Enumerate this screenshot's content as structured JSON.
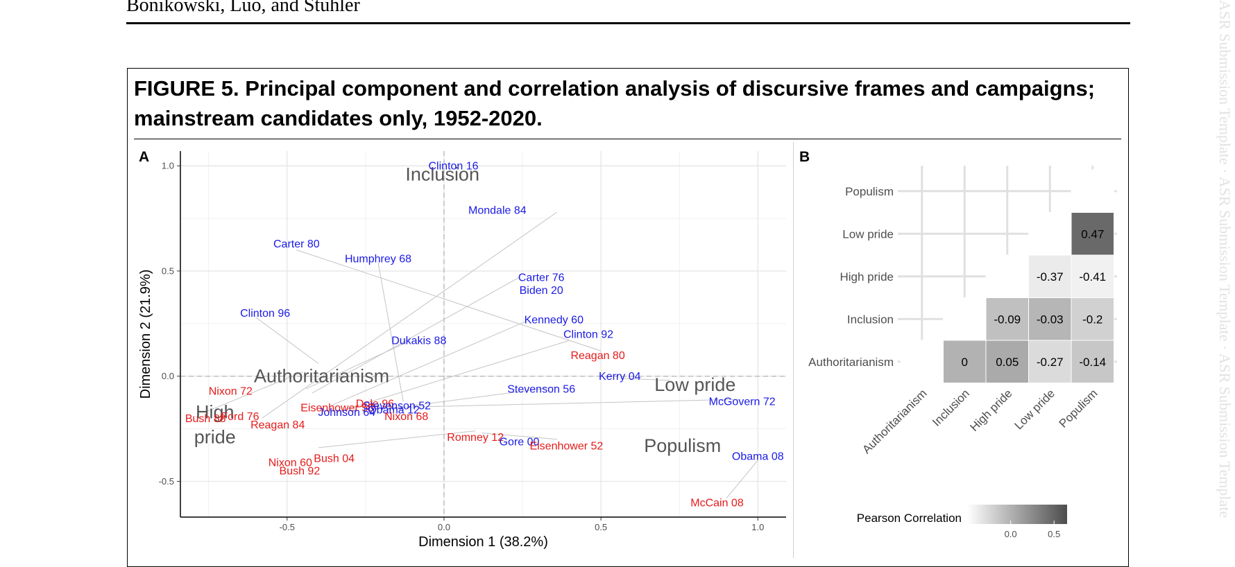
{
  "header": {
    "authors": "Bonikowski, Luo, and Stuhler"
  },
  "watermark": {
    "text": "ASR Submission Template · ASR Submission Template · ASR Submission Template"
  },
  "figure": {
    "caption_line1": "FIGURE 5. Principal component and correlation analysis of discursive frames and campaigns;",
    "caption_line2": "mainstream candidates only, 1952-2020."
  },
  "colors": {
    "democrat": "#1a1ae6",
    "republican": "#e61a1a",
    "frame": "#555555"
  },
  "chart_data": [
    {
      "type": "scatter",
      "panel_label": "A",
      "title": "",
      "xlabel": "Dimension 1 (38.2%)",
      "ylabel": "Dimension 2 (21.9%)",
      "xlim": [
        -0.84,
        1.09
      ],
      "ylim": [
        -0.67,
        1.07
      ],
      "xticks": [
        -0.5,
        0.0,
        0.5,
        1.0
      ],
      "xtick_labels": [
        "-0.5",
        "0.0",
        "0.5",
        "1.0"
      ],
      "yticks": [
        -0.5,
        0.0,
        0.5,
        1.0
      ],
      "ytick_labels": [
        "-0.5",
        "0.0",
        "0.5",
        "1.0"
      ],
      "grid": true,
      "frames": [
        {
          "label": "Inclusion",
          "x": -0.005,
          "y": 0.96
        },
        {
          "label": "Authoritarianism",
          "x": -0.39,
          "y": 0.0
        },
        {
          "label": "High",
          "x": -0.73,
          "y": -0.17
        },
        {
          "label": "pride",
          "x": -0.73,
          "y": -0.29
        },
        {
          "label": "Low pride",
          "x": 0.8,
          "y": -0.04
        },
        {
          "label": "Populism",
          "x": 0.76,
          "y": -0.33
        }
      ],
      "campaigns": [
        {
          "label": "Clinton 16",
          "x": 0.03,
          "y": 1.0,
          "party": "D"
        },
        {
          "label": "Mondale 84",
          "x": 0.17,
          "y": 0.79,
          "party": "D"
        },
        {
          "label": "Carter 80",
          "x": -0.47,
          "y": 0.63,
          "party": "D"
        },
        {
          "label": "Humphrey 68",
          "x": -0.21,
          "y": 0.56,
          "party": "D"
        },
        {
          "label": "Carter 76",
          "x": 0.31,
          "y": 0.47,
          "party": "D"
        },
        {
          "label": "Biden 20",
          "x": 0.31,
          "y": 0.41,
          "party": "D"
        },
        {
          "label": "Clinton 96",
          "x": -0.57,
          "y": 0.3,
          "party": "D"
        },
        {
          "label": "Kennedy 60",
          "x": 0.35,
          "y": 0.27,
          "party": "D"
        },
        {
          "label": "Clinton 92",
          "x": 0.46,
          "y": 0.2,
          "party": "D"
        },
        {
          "label": "Dukakis 88",
          "x": -0.08,
          "y": 0.17,
          "party": "D"
        },
        {
          "label": "Reagan 80",
          "x": 0.49,
          "y": 0.1,
          "party": "R"
        },
        {
          "label": "Kerry 04",
          "x": 0.56,
          "y": 0.0,
          "party": "D"
        },
        {
          "label": "Nixon 72",
          "x": -0.68,
          "y": -0.07,
          "party": "R"
        },
        {
          "label": "Stevenson 56",
          "x": 0.31,
          "y": -0.06,
          "party": "D"
        },
        {
          "label": "McGovern 72",
          "x": 0.95,
          "y": -0.12,
          "party": "D"
        },
        {
          "label": "Dole 96",
          "x": -0.22,
          "y": -0.13,
          "party": "R"
        },
        {
          "label": "Stevenson 52",
          "x": -0.15,
          "y": -0.14,
          "party": "D"
        },
        {
          "label": "Eisenhower 56",
          "x": -0.34,
          "y": -0.15,
          "party": "R"
        },
        {
          "label": "Obama 12",
          "x": -0.16,
          "y": -0.16,
          "party": "D"
        },
        {
          "label": "Johnson 64",
          "x": -0.31,
          "y": -0.17,
          "party": "D"
        },
        {
          "label": "Ford 76",
          "x": -0.65,
          "y": -0.19,
          "party": "R"
        },
        {
          "label": "Bush 88",
          "x": -0.76,
          "y": -0.2,
          "party": "R"
        },
        {
          "label": "Nixon 68",
          "x": -0.12,
          "y": -0.19,
          "party": "R"
        },
        {
          "label": "Reagan 84",
          "x": -0.53,
          "y": -0.23,
          "party": "R"
        },
        {
          "label": "Romney 12",
          "x": 0.1,
          "y": -0.29,
          "party": "R"
        },
        {
          "label": "Gore 00",
          "x": 0.24,
          "y": -0.31,
          "party": "D"
        },
        {
          "label": "Eisenhower 52",
          "x": 0.39,
          "y": -0.33,
          "party": "R"
        },
        {
          "label": "Obama 08",
          "x": 1.0,
          "y": -0.38,
          "party": "D"
        },
        {
          "label": "Bush 04",
          "x": -0.35,
          "y": -0.39,
          "party": "R"
        },
        {
          "label": "Nixon 60",
          "x": -0.49,
          "y": -0.41,
          "party": "R"
        },
        {
          "label": "Bush 92",
          "x": -0.46,
          "y": -0.45,
          "party": "R"
        },
        {
          "label": "McCain 08",
          "x": 0.87,
          "y": -0.6,
          "party": "R"
        }
      ],
      "connectors": [
        [
          -0.47,
          0.6,
          0.5,
          0.12
        ],
        [
          -0.21,
          0.54,
          -0.13,
          -0.12
        ],
        [
          -0.6,
          0.28,
          -0.4,
          0.06
        ],
        [
          -0.42,
          -0.08,
          0.24,
          0.47
        ],
        [
          -0.44,
          -0.06,
          -0.12,
          0.16
        ],
        [
          -0.36,
          -0.14,
          0.26,
          0.26
        ],
        [
          -0.34,
          -0.17,
          0.4,
          0.17
        ],
        [
          -0.2,
          -0.15,
          0.94,
          -0.11
        ],
        [
          -0.1,
          -0.14,
          0.36,
          -0.05
        ],
        [
          -0.4,
          -0.34,
          0.1,
          -0.26
        ],
        [
          -0.58,
          -0.2,
          0.36,
          0.78
        ],
        [
          -0.76,
          -0.17,
          -0.45,
          0.02
        ],
        [
          0.9,
          -0.58,
          1.0,
          -0.4
        ],
        [
          0.56,
          -0.01,
          0.72,
          -0.02
        ],
        [
          0.12,
          -0.27,
          0.36,
          -0.3
        ]
      ]
    },
    {
      "type": "heatmap",
      "panel_label": "B",
      "title": "",
      "variables": [
        "Authoritarianism",
        "Inclusion",
        "High pride",
        "Low pride",
        "Populism"
      ],
      "cells": [
        {
          "row": "Low pride",
          "col": "Populism",
          "value": 0.47,
          "label": "0.47"
        },
        {
          "row": "High pride",
          "col": "Low pride",
          "value": -0.37,
          "label": "-0.37"
        },
        {
          "row": "High pride",
          "col": "Populism",
          "value": -0.41,
          "label": "-0.41"
        },
        {
          "row": "Inclusion",
          "col": "High pride",
          "value": -0.09,
          "label": "-0.09"
        },
        {
          "row": "Inclusion",
          "col": "Low pride",
          "value": -0.03,
          "label": "-0.03"
        },
        {
          "row": "Inclusion",
          "col": "Populism",
          "value": -0.2,
          "label": "-0.2"
        },
        {
          "row": "Authoritarianism",
          "col": "Inclusion",
          "value": 0,
          "label": "0"
        },
        {
          "row": "Authoritarianism",
          "col": "High pride",
          "value": 0.05,
          "label": "0.05"
        },
        {
          "row": "Authoritarianism",
          "col": "Low pride",
          "value": -0.27,
          "label": "-0.27"
        },
        {
          "row": "Authoritarianism",
          "col": "Populism",
          "value": -0.14,
          "label": "-0.14"
        }
      ],
      "legend": {
        "title": "Pearson Correlation",
        "range": [
          -0.5,
          0.65
        ],
        "ticks": [
          0.0,
          0.5
        ],
        "tick_labels": [
          "0.0",
          "0.5"
        ]
      }
    }
  ]
}
